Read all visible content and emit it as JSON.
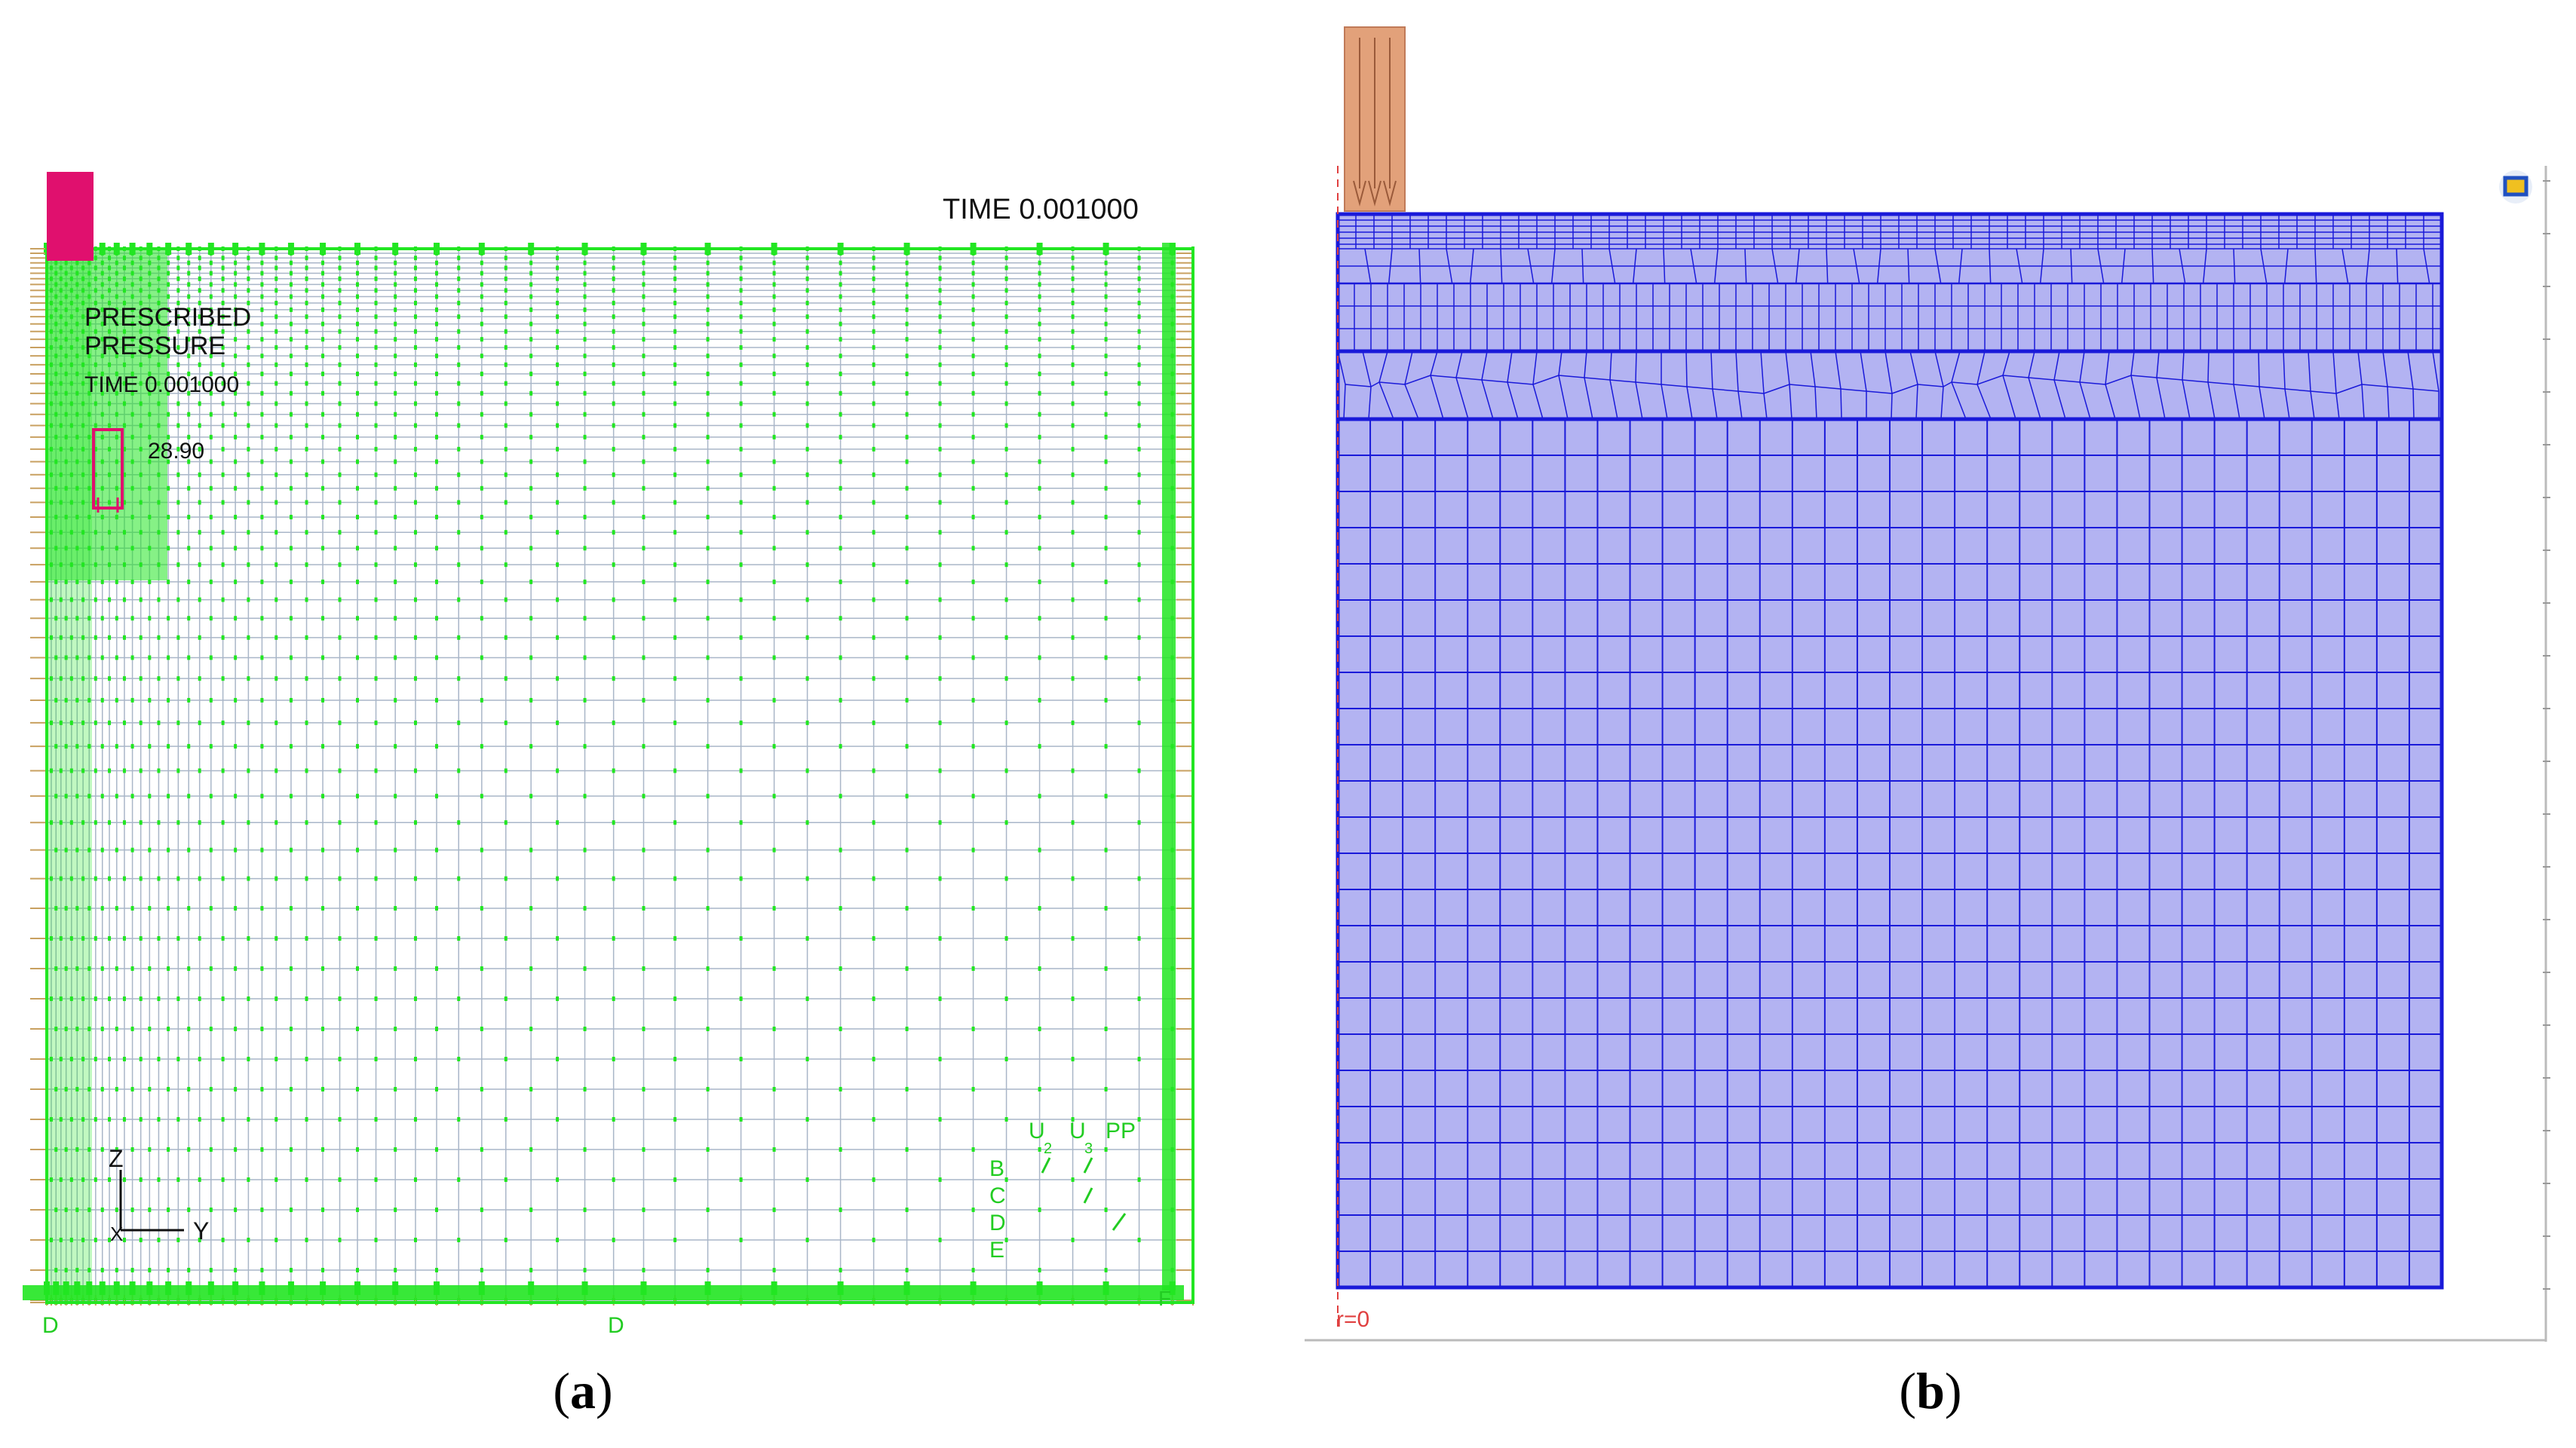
{
  "panel_a": {
    "caption_letter": "a",
    "time_label": "TIME 0.001000",
    "legend_line1": "PRESCRIBED",
    "legend_line2": "PRESSURE",
    "legend_time": "TIME 0.001000",
    "legend_value": "28.90",
    "axis_z": "Z",
    "axis_y": "Y",
    "axis_x": "X",
    "dof_headers": [
      "U",
      "U",
      "PP"
    ],
    "dof_subs": [
      "2",
      "3"
    ],
    "dof_codes": [
      "B",
      "C",
      "D",
      "E"
    ],
    "bottom_labels": [
      "D",
      "D"
    ],
    "right_corner_code": "F",
    "colors": {
      "mesh": "#a9b6c8",
      "markers": "#22e622",
      "load": "#e0106e",
      "boundary": "#c8a060"
    }
  },
  "panel_b": {
    "caption_letter": "b",
    "axis_label": "r=0",
    "colors": {
      "fill": "#b3b3f2",
      "mesh": "#1a1ad9",
      "indenter": "#e2a17a",
      "axis": "#e04040"
    }
  }
}
